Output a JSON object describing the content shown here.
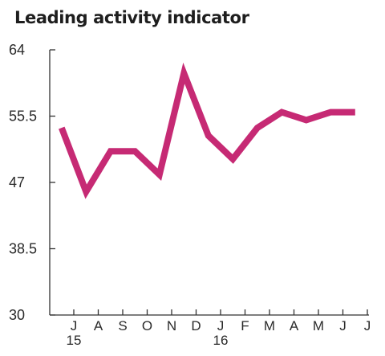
{
  "chart_data": {
    "type": "line",
    "title": "Leading activity indicator",
    "xlabel": "",
    "ylabel": "",
    "ylim": [
      30,
      64
    ],
    "y_ticks": [
      "30",
      "38.5",
      "47",
      "55.5",
      "64"
    ],
    "x_ticks": [
      {
        "label": "J",
        "sub": "15"
      },
      {
        "label": "A",
        "sub": ""
      },
      {
        "label": "S",
        "sub": ""
      },
      {
        "label": "O",
        "sub": ""
      },
      {
        "label": "N",
        "sub": ""
      },
      {
        "label": "D",
        "sub": ""
      },
      {
        "label": "J",
        "sub": "16"
      },
      {
        "label": "F",
        "sub": ""
      },
      {
        "label": "M",
        "sub": ""
      },
      {
        "label": "A",
        "sub": ""
      },
      {
        "label": "M",
        "sub": ""
      },
      {
        "label": "J",
        "sub": ""
      },
      {
        "label": "J",
        "sub": ""
      }
    ],
    "x": [
      -0.5,
      0.5,
      1.5,
      2.5,
      3.5,
      4.5,
      5.5,
      6.5,
      7.5,
      8.5,
      9.5,
      10.5,
      11.5
    ],
    "series": [
      {
        "name": "",
        "color": "#c62a74",
        "values": [
          54.0,
          45.8,
          51.0,
          51.0,
          48.0,
          61.0,
          53.0,
          50.0,
          54.0,
          56.0,
          55.0,
          56.0,
          56.0
        ]
      }
    ],
    "grid": false
  }
}
